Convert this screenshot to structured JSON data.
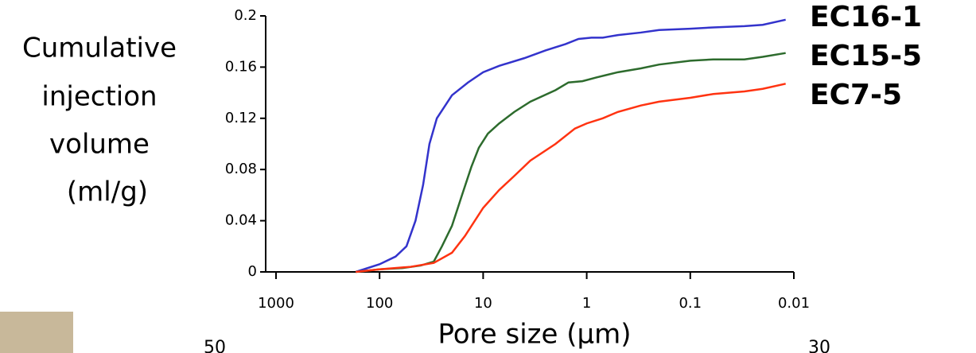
{
  "chart_data": {
    "type": "line",
    "ylabel": [
      "Cumulative",
      "injection",
      "volume",
      "(ml/g)"
    ],
    "xlabel": "Pore size (µm)",
    "xscale": "log",
    "xlim": [
      1000,
      0.01
    ],
    "xticks": [
      1000,
      100,
      10,
      1,
      0.1,
      0.01
    ],
    "ylim": [
      0,
      0.2
    ],
    "yticks": [
      0,
      0.04,
      0.08,
      0.12,
      0.16,
      0.2
    ],
    "annotations": [
      "50",
      "30"
    ],
    "series": [
      {
        "name": "EC16-1",
        "color": "#3333cc",
        "x": [
          170,
          100,
          70,
          55,
          45,
          38,
          33,
          28,
          20,
          14,
          10,
          7,
          4,
          2.5,
          1.6,
          1.2,
          0.9,
          0.7,
          0.5,
          0.3,
          0.2,
          0.1,
          0.06,
          0.03,
          0.02,
          0.012
        ],
        "values": [
          0,
          0.006,
          0.012,
          0.02,
          0.04,
          0.068,
          0.1,
          0.12,
          0.138,
          0.148,
          0.156,
          0.161,
          0.167,
          0.173,
          0.178,
          0.182,
          0.183,
          0.183,
          0.185,
          0.187,
          0.189,
          0.19,
          0.191,
          0.192,
          0.193,
          0.197
        ]
      },
      {
        "name": "EC15-5",
        "color": "#2d6b2d",
        "x": [
          170,
          100,
          60,
          40,
          30,
          25,
          20,
          16,
          13,
          11,
          9,
          7,
          5,
          3.5,
          2,
          1.5,
          1.1,
          0.8,
          0.5,
          0.3,
          0.2,
          0.1,
          0.06,
          0.03,
          0.02,
          0.012
        ],
        "values": [
          0,
          0.002,
          0.003,
          0.005,
          0.008,
          0.02,
          0.036,
          0.06,
          0.082,
          0.097,
          0.108,
          0.116,
          0.125,
          0.133,
          0.142,
          0.148,
          0.149,
          0.152,
          0.156,
          0.159,
          0.162,
          0.165,
          0.166,
          0.166,
          0.168,
          0.171
        ]
      },
      {
        "name": "EC7-5",
        "color": "#ff3311",
        "x": [
          170,
          100,
          50,
          30,
          20,
          15,
          10,
          7,
          5,
          3.5,
          2,
          1.3,
          1,
          0.7,
          0.5,
          0.3,
          0.2,
          0.1,
          0.06,
          0.03,
          0.02,
          0.012
        ],
        "values": [
          0,
          0.002,
          0.004,
          0.007,
          0.015,
          0.028,
          0.05,
          0.064,
          0.075,
          0.087,
          0.1,
          0.112,
          0.116,
          0.12,
          0.125,
          0.13,
          0.133,
          0.136,
          0.139,
          0.141,
          0.143,
          0.147
        ]
      }
    ]
  }
}
